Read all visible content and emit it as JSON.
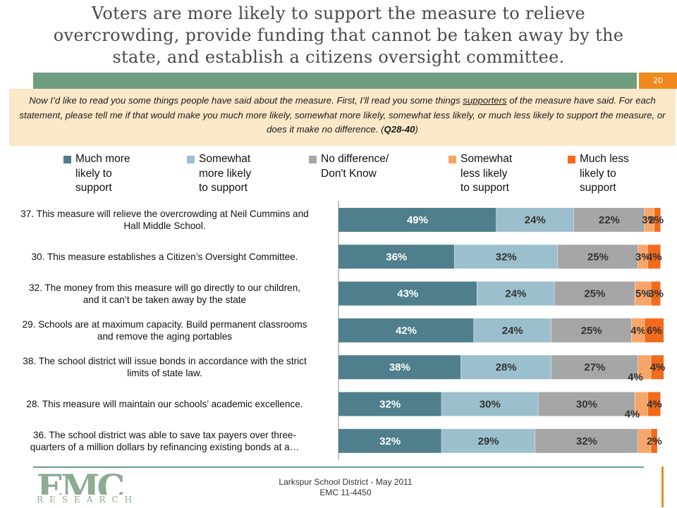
{
  "slide": {
    "title_lines": [
      "Voters are more likely to support the measure to relieve",
      "overcrowding, provide funding that cannot be taken away by the",
      "state, and establish a citizens oversight committee."
    ],
    "page_number": "20"
  },
  "question": {
    "part1": "Now I’d like to read you some things people have said about the measure.  First, I’ll read you some things ",
    "underlined": "supporters",
    "part2": " of the measure have said.  For each statement, please tell me if that would make you much more likely, somewhat more likely, somewhat less likely, or much less likely to support the measure, or does it make no difference. (",
    "code": "Q28-40",
    "part3": ")"
  },
  "legend": [
    {
      "lines": [
        "Much more",
        "likely to",
        "support"
      ],
      "color": "#4f7f8c"
    },
    {
      "lines": [
        "Somewhat",
        "more likely",
        "to support"
      ],
      "color": "#9bbfcc"
    },
    {
      "lines": [
        "No difference/",
        "Don't Know"
      ],
      "color": "#a6a6a6"
    },
    {
      "lines": [
        "Somewhat",
        "less likely",
        "to support"
      ],
      "color": "#f7a66a"
    },
    {
      "lines": [
        "Much less",
        "likely to",
        "support"
      ],
      "color": "#f26a1b"
    }
  ],
  "chart_data": {
    "type": "bar",
    "orientation": "horizontal",
    "stacked": true,
    "categories": [
      [
        "37. This measure will relieve the overcrowding at Neil Cummins and",
        "Hall Middle School."
      ],
      [
        "30. This measure establishes a Citizen’s Oversight Committee."
      ],
      [
        "32. The money from this measure will go directly to our children,",
        "and it can’t be taken away by the state"
      ],
      [
        "29. Schools are at maximum capacity. Build permanent classrooms",
        "and remove the aging portables"
      ],
      [
        "38. The school district will issue bonds in accordance with the strict",
        "limits of state law."
      ],
      [
        "28. This measure will maintain our schools’ academic excellence."
      ],
      [
        "36. The school district was able to save tax payers over three-",
        "quarters of a million dollars by refinancing existing bonds at a…"
      ]
    ],
    "series": [
      {
        "name": "Much more likely to support",
        "color": "#4f7f8c",
        "values": [
          49,
          36,
          43,
          42,
          38,
          32,
          32
        ]
      },
      {
        "name": "Somewhat more likely to support",
        "color": "#9bbfcc",
        "values": [
          24,
          32,
          24,
          24,
          28,
          30,
          29
        ]
      },
      {
        "name": "No difference/ Don't Know",
        "color": "#a6a6a6",
        "values": [
          22,
          25,
          25,
          25,
          27,
          30,
          32
        ]
      },
      {
        "name": "Somewhat less likely to support",
        "color": "#f7a66a",
        "values": [
          3,
          3,
          5,
          4,
          4,
          4,
          4
        ]
      },
      {
        "name": "Much less likely to support",
        "color": "#f26a1b",
        "values": [
          2,
          4,
          3,
          6,
          4,
          4,
          2
        ]
      }
    ],
    "data_labels": [
      [
        "49%",
        "24%",
        "22%",
        "3%",
        "2%"
      ],
      [
        "36%",
        "32%",
        "25%",
        "3%",
        "4%"
      ],
      [
        "43%",
        "24%",
        "25%",
        "5%",
        "3%"
      ],
      [
        "42%",
        "24%",
        "25%",
        "4%",
        "6%"
      ],
      [
        "38%",
        "28%",
        "27%",
        "4%",
        "4%"
      ],
      [
        "32%",
        "30%",
        "30%",
        "4%",
        "4%"
      ],
      [
        "32%",
        "29%",
        "32%",
        "",
        "2%"
      ]
    ],
    "xlim": [
      0,
      100
    ],
    "legend_position": "top",
    "grid": false
  },
  "footer": {
    "line1": "Larkspur School District - May 2011",
    "line2": "EMC 11-4450",
    "logo_main": "EMC",
    "logo_sub": "RESEARCH"
  }
}
